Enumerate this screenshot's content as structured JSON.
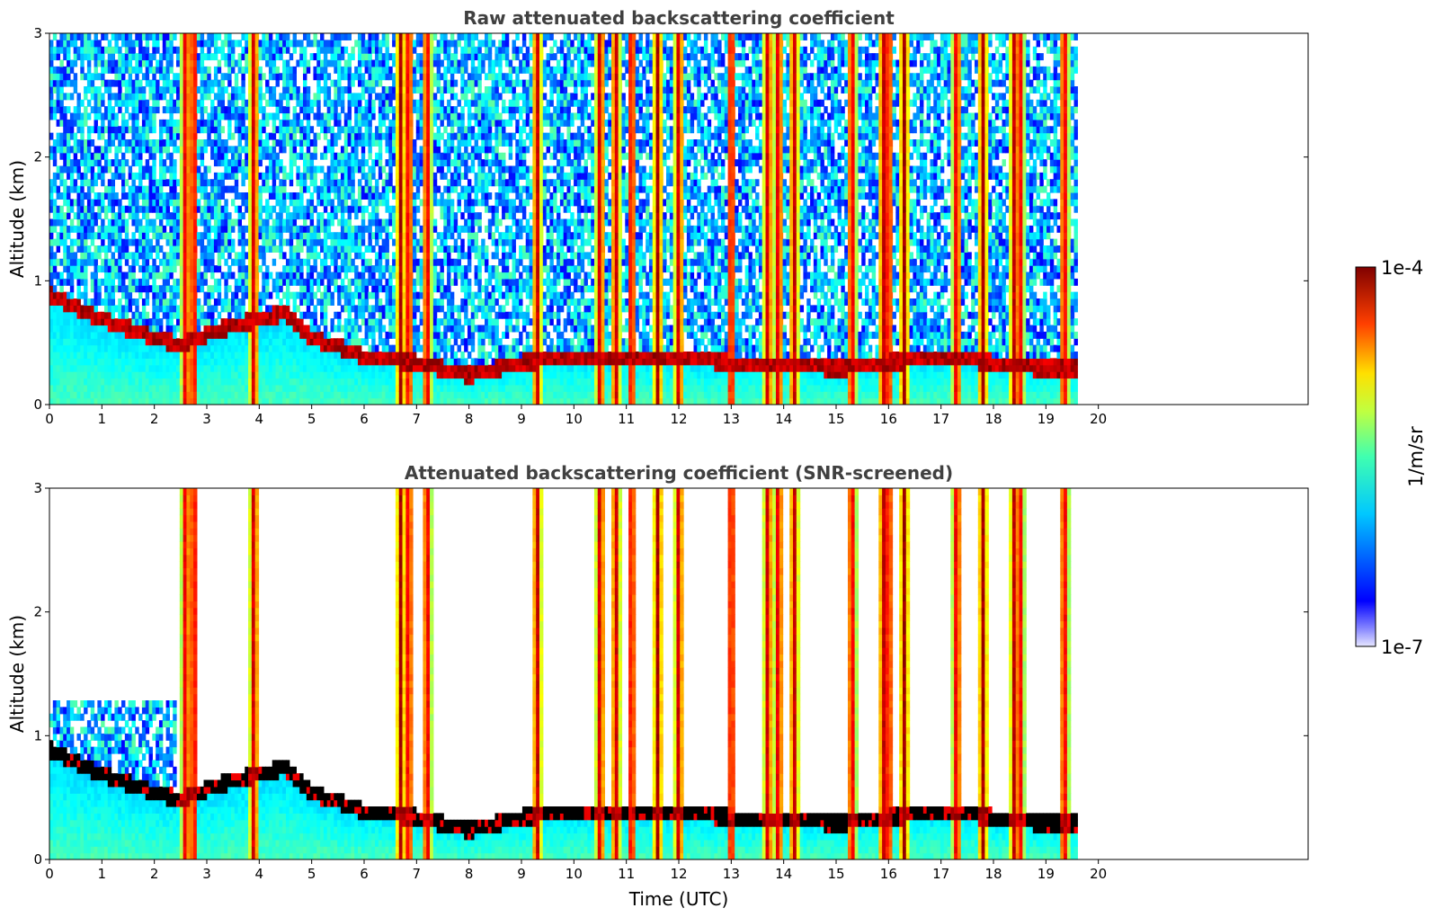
{
  "chart_data": [
    {
      "type": "heatmap",
      "title": "Raw attenuated backscattering coefficient",
      "xlabel": "",
      "ylabel": "Altitude (km)",
      "xlim": [
        0,
        24
      ],
      "ylim": [
        0,
        3
      ],
      "xticks": [
        "0",
        "1",
        "2",
        "3",
        "4",
        "5",
        "6",
        "7",
        "8",
        "9",
        "10",
        "11",
        "12",
        "13",
        "14",
        "15",
        "16",
        "17",
        "18",
        "19",
        "20"
      ],
      "yticks": [
        "0",
        "1",
        "2",
        "3"
      ],
      "data_end_hour": 19.6,
      "boundary_layer_top_km": [
        [
          0,
          0.95
        ],
        [
          1,
          0.75
        ],
        [
          2,
          0.6
        ],
        [
          2.5,
          0.55
        ],
        [
          3.5,
          0.7
        ],
        [
          4.5,
          0.8
        ],
        [
          5,
          0.6
        ],
        [
          6,
          0.45
        ],
        [
          7,
          0.4
        ],
        [
          8,
          0.3
        ],
        [
          9,
          0.4
        ],
        [
          10,
          0.45
        ],
        [
          11,
          0.45
        ],
        [
          12,
          0.45
        ],
        [
          13,
          0.4
        ],
        [
          14,
          0.4
        ],
        [
          15,
          0.35
        ],
        [
          16,
          0.4
        ],
        [
          17,
          0.45
        ],
        [
          18,
          0.4
        ],
        [
          19,
          0.35
        ],
        [
          19.6,
          0.35
        ]
      ],
      "precipitation_hours": [
        2.6,
        2.75,
        3.9,
        6.7,
        6.85,
        7.2,
        9.3,
        10.5,
        10.8,
        11.1,
        11.6,
        12.0,
        13.0,
        13.7,
        13.9,
        14.2,
        15.3,
        15.9,
        16.0,
        16.3,
        17.3,
        17.8,
        18.4,
        18.5,
        19.35
      ]
    },
    {
      "type": "heatmap",
      "title": "Attenuated backscattering coefficient (SNR-screened)",
      "xlabel": "Time (UTC)",
      "ylabel": "Altitude (km)",
      "xlim": [
        0,
        24
      ],
      "ylim": [
        0,
        3
      ],
      "xticks": [
        "0",
        "1",
        "2",
        "3",
        "4",
        "5",
        "6",
        "7",
        "8",
        "9",
        "10",
        "11",
        "12",
        "13",
        "14",
        "15",
        "16",
        "17",
        "18",
        "19",
        "20"
      ],
      "yticks": [
        "0",
        "1",
        "2",
        "3"
      ],
      "data_end_hour": 19.6,
      "screened": true
    }
  ],
  "colorbar": {
    "label": "1/m/sr",
    "max_label": "1e-4",
    "min_label": "1e-7",
    "scale": "log",
    "range": [
      1e-07,
      0.0001
    ],
    "colormap": "jet"
  }
}
